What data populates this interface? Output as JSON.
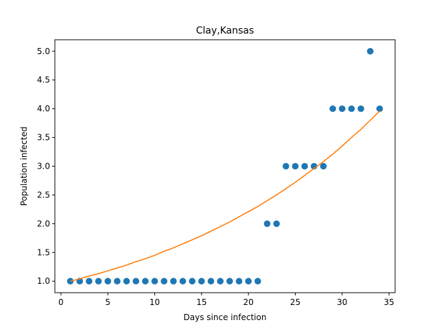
{
  "chart_data": {
    "type": "scatter",
    "title": "Clay,Kansas",
    "xlabel": "Days since infection",
    "ylabel": "Population infected",
    "xlim": [
      -0.65,
      35.65
    ],
    "ylim": [
      0.8,
      5.2
    ],
    "xticks": [
      0,
      5,
      10,
      15,
      20,
      25,
      30,
      35
    ],
    "xtick_labels": [
      "0",
      "5",
      "10",
      "15",
      "20",
      "25",
      "30",
      "35"
    ],
    "yticks": [
      1.0,
      1.5,
      2.0,
      2.5,
      3.0,
      3.5,
      4.0,
      4.5,
      5.0
    ],
    "ytick_labels": [
      "1.0",
      "1.5",
      "2.0",
      "2.5",
      "3.0",
      "3.5",
      "4.0",
      "4.5",
      "5.0"
    ],
    "grid": false,
    "series": [
      {
        "kind": "points",
        "color": "#1f77b4",
        "x": [
          1,
          2,
          3,
          4,
          5,
          6,
          7,
          8,
          9,
          10,
          11,
          12,
          13,
          14,
          15,
          16,
          17,
          18,
          19,
          20,
          21,
          22,
          23,
          24,
          25,
          26,
          27,
          28,
          29,
          30,
          31,
          32,
          33,
          34
        ],
        "y": [
          1,
          1,
          1,
          1,
          1,
          1,
          1,
          1,
          1,
          1,
          1,
          1,
          1,
          1,
          1,
          1,
          1,
          1,
          1,
          1,
          1,
          2,
          2,
          3,
          3,
          3,
          3,
          3,
          4,
          4,
          4,
          4,
          5,
          4
        ]
      },
      {
        "kind": "fit-line",
        "color": "#ff7f0e",
        "x": [
          1,
          2,
          3,
          4,
          5,
          6,
          7,
          8,
          9,
          10,
          11,
          12,
          13,
          14,
          15,
          16,
          17,
          18,
          19,
          20,
          21,
          22,
          23,
          24,
          25,
          26,
          27,
          28,
          29,
          30,
          31,
          32,
          33,
          34
        ],
        "y": [
          1.0,
          1.04,
          1.09,
          1.13,
          1.18,
          1.23,
          1.28,
          1.34,
          1.39,
          1.45,
          1.52,
          1.58,
          1.65,
          1.72,
          1.79,
          1.87,
          1.95,
          2.03,
          2.12,
          2.21,
          2.3,
          2.4,
          2.5,
          2.61,
          2.72,
          2.84,
          2.96,
          3.08,
          3.21,
          3.35,
          3.5,
          3.64,
          3.8,
          3.96
        ]
      }
    ]
  }
}
